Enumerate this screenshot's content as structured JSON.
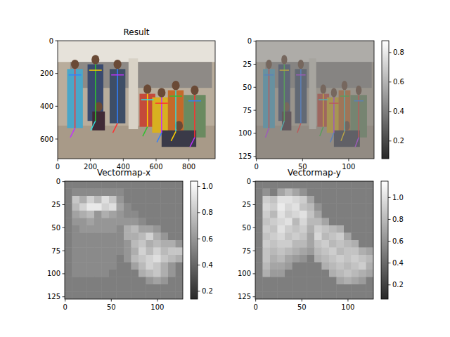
{
  "chart_data": [
    {
      "type": "image",
      "title": "Result",
      "xlim": [
        0,
        960
      ],
      "ylim": [
        720,
        0
      ],
      "xticks": [
        0,
        200,
        400,
        600,
        800
      ],
      "yticks": [
        0,
        200,
        400,
        600
      ]
    },
    {
      "type": "image",
      "xlim": [
        -0.5,
        127.5
      ],
      "ylim": [
        127.5,
        -0.5
      ],
      "xticks": [
        0,
        50,
        100
      ],
      "yticks": [
        0,
        25,
        50,
        75,
        100,
        125
      ],
      "colorbar_range": [
        0.08,
        0.88
      ],
      "colorbar_ticks": [
        0.2,
        0.4,
        0.6,
        0.8
      ]
    },
    {
      "type": "heatmap",
      "title": "Vectormap-x",
      "xlim": [
        -0.5,
        127.5
      ],
      "ylim": [
        127.5,
        -0.5
      ],
      "xticks": [
        0,
        50,
        100
      ],
      "yticks": [
        0,
        25,
        50,
        75,
        100,
        125
      ],
      "colorbar_range": [
        0.14,
        1.04
      ],
      "colorbar_ticks": [
        0.2,
        0.4,
        0.6,
        0.8,
        {
          "value": 1,
          "label": "1.0"
        }
      ],
      "cells": [
        [
          0.5,
          0.5,
          0.5,
          0.5,
          0.5,
          0.5,
          0.5,
          0.5,
          0.5,
          0.5,
          0.5,
          0.5,
          0.5,
          0.5,
          0.5,
          0.5
        ],
        [
          0.5,
          0.55,
          0.55,
          0.55,
          0.55,
          0.55,
          0.55,
          0.55,
          0.5,
          0.5,
          0.5,
          0.5,
          0.5,
          0.5,
          0.5,
          0.5
        ],
        [
          0.5,
          0.8,
          0.7,
          0.85,
          0.75,
          0.9,
          0.8,
          0.6,
          0.5,
          0.5,
          0.5,
          0.5,
          0.5,
          0.5,
          0.5,
          0.5
        ],
        [
          0.5,
          0.75,
          0.85,
          0.95,
          0.95,
          0.85,
          0.9,
          0.65,
          0.55,
          0.5,
          0.5,
          0.5,
          0.5,
          0.5,
          0.5,
          0.5
        ],
        [
          0.5,
          0.65,
          0.7,
          0.75,
          0.6,
          0.7,
          0.65,
          0.6,
          0.55,
          0.55,
          0.5,
          0.5,
          0.5,
          0.5,
          0.5,
          0.5
        ],
        [
          0.5,
          0.6,
          0.6,
          0.65,
          0.6,
          0.6,
          0.6,
          0.6,
          0.6,
          0.6,
          0.55,
          0.5,
          0.5,
          0.5,
          0.5,
          0.5
        ],
        [
          0.5,
          0.55,
          0.6,
          0.6,
          0.6,
          0.6,
          0.6,
          0.55,
          0.7,
          0.75,
          0.65,
          0.65,
          0.6,
          0.5,
          0.5,
          0.5
        ],
        [
          0.5,
          0.55,
          0.55,
          0.55,
          0.55,
          0.55,
          0.55,
          0.55,
          0.7,
          0.7,
          0.75,
          0.85,
          0.7,
          0.6,
          0.5,
          0.5
        ],
        [
          0.5,
          0.55,
          0.55,
          0.55,
          0.55,
          0.55,
          0.55,
          0.55,
          0.6,
          0.75,
          0.8,
          0.7,
          0.75,
          0.7,
          0.7,
          0.6
        ],
        [
          0.5,
          0.55,
          0.55,
          0.55,
          0.55,
          0.55,
          0.55,
          0.55,
          0.6,
          0.7,
          0.85,
          0.75,
          0.85,
          0.75,
          0.8,
          0.8
        ],
        [
          0.5,
          0.55,
          0.55,
          0.55,
          0.55,
          0.55,
          0.55,
          0.5,
          0.6,
          0.75,
          0.8,
          0.85,
          0.9,
          0.8,
          0.75,
          0.7
        ],
        [
          0.5,
          0.55,
          0.55,
          0.55,
          0.55,
          0.55,
          0.55,
          0.5,
          0.5,
          0.65,
          0.75,
          0.85,
          0.8,
          0.7,
          0.6,
          0.5
        ],
        [
          0.5,
          0.55,
          0.55,
          0.55,
          0.55,
          0.55,
          0.5,
          0.5,
          0.5,
          0.5,
          0.7,
          0.75,
          0.8,
          0.7,
          0.6,
          0.5
        ],
        [
          0.5,
          0.5,
          0.5,
          0.5,
          0.5,
          0.5,
          0.5,
          0.5,
          0.5,
          0.5,
          0.5,
          0.6,
          0.65,
          0.6,
          0.5,
          0.5
        ],
        [
          0.5,
          0.5,
          0.5,
          0.5,
          0.5,
          0.5,
          0.5,
          0.5,
          0.5,
          0.5,
          0.5,
          0.5,
          0.5,
          0.5,
          0.5,
          0.5
        ],
        [
          0.5,
          0.5,
          0.5,
          0.5,
          0.5,
          0.5,
          0.5,
          0.5,
          0.5,
          0.5,
          0.5,
          0.5,
          0.5,
          0.5,
          0.5,
          0.5
        ]
      ]
    },
    {
      "type": "heatmap",
      "title": "Vectormap-y",
      "xlim": [
        -0.5,
        127.5
      ],
      "ylim": [
        127.5,
        -0.5
      ],
      "xticks": [
        0,
        50,
        100
      ],
      "yticks": [
        0,
        25,
        50,
        75,
        100,
        125
      ],
      "colorbar_range": [
        0.07,
        1.15
      ],
      "colorbar_ticks": [
        0.2,
        0.4,
        0.6,
        0.8,
        {
          "value": 1,
          "label": "1.0"
        }
      ],
      "cells": [
        [
          0.5,
          0.5,
          0.5,
          0.5,
          0.5,
          0.5,
          0.5,
          0.5,
          0.5,
          0.5,
          0.5,
          0.5,
          0.5,
          0.5,
          0.5,
          0.5
        ],
        [
          0.5,
          0.6,
          0.5,
          0.7,
          0.8,
          0.7,
          0.6,
          0.5,
          0.5,
          0.5,
          0.5,
          0.5,
          0.5,
          0.5,
          0.5,
          0.5
        ],
        [
          0.5,
          0.9,
          0.85,
          1.0,
          1.0,
          0.95,
          0.9,
          0.7,
          0.5,
          0.5,
          0.5,
          0.5,
          0.5,
          0.5,
          0.5,
          0.5
        ],
        [
          0.5,
          0.95,
          0.9,
          1.05,
          0.95,
          1.0,
          0.85,
          0.8,
          0.6,
          0.5,
          0.5,
          0.5,
          0.5,
          0.5,
          0.5,
          0.5
        ],
        [
          0.5,
          0.9,
          0.8,
          1.0,
          0.9,
          0.95,
          1.0,
          0.85,
          0.7,
          0.5,
          0.5,
          0.5,
          0.5,
          0.5,
          0.5,
          0.5
        ],
        [
          0.5,
          0.85,
          0.9,
          0.95,
          1.0,
          0.8,
          0.95,
          0.8,
          0.8,
          0.7,
          0.5,
          0.5,
          0.5,
          0.5,
          0.5,
          0.5
        ],
        [
          0.5,
          0.9,
          0.85,
          1.0,
          0.9,
          0.85,
          0.9,
          0.75,
          0.9,
          0.85,
          0.8,
          0.75,
          0.5,
          0.5,
          0.5,
          0.5
        ],
        [
          0.5,
          0.85,
          0.9,
          0.95,
          0.85,
          0.9,
          0.85,
          0.7,
          0.95,
          0.8,
          0.85,
          0.9,
          0.7,
          0.5,
          0.5,
          0.5
        ],
        [
          0.5,
          0.9,
          0.85,
          0.9,
          0.9,
          0.8,
          0.8,
          0.7,
          0.85,
          0.9,
          0.8,
          0.85,
          0.8,
          0.75,
          0.5,
          0.5
        ],
        [
          0.5,
          0.85,
          0.8,
          0.85,
          0.8,
          0.75,
          0.7,
          0.65,
          0.8,
          0.85,
          0.9,
          0.8,
          0.85,
          0.85,
          0.75,
          0.7
        ],
        [
          0.5,
          0.85,
          0.75,
          0.8,
          0.7,
          0.65,
          0.6,
          0.5,
          0.75,
          0.8,
          0.85,
          0.9,
          0.85,
          0.9,
          0.85,
          0.8
        ],
        [
          0.5,
          0.8,
          0.7,
          0.7,
          0.65,
          0.5,
          0.5,
          0.5,
          0.5,
          0.75,
          0.8,
          0.85,
          0.8,
          0.85,
          0.9,
          0.75
        ],
        [
          0.5,
          0.75,
          0.65,
          0.65,
          0.5,
          0.5,
          0.5,
          0.5,
          0.5,
          0.5,
          0.75,
          0.8,
          0.85,
          0.8,
          0.75,
          0.7
        ],
        [
          0.5,
          0.5,
          0.5,
          0.5,
          0.5,
          0.5,
          0.5,
          0.5,
          0.5,
          0.5,
          0.5,
          0.7,
          0.75,
          0.7,
          0.65,
          0.5
        ],
        [
          0.5,
          0.5,
          0.5,
          0.5,
          0.5,
          0.5,
          0.5,
          0.5,
          0.5,
          0.5,
          0.5,
          0.5,
          0.5,
          0.5,
          0.5,
          0.5
        ],
        [
          0.5,
          0.5,
          0.5,
          0.5,
          0.5,
          0.5,
          0.5,
          0.5,
          0.5,
          0.5,
          0.5,
          0.5,
          0.5,
          0.5,
          0.5,
          0.5
        ]
      ]
    }
  ]
}
